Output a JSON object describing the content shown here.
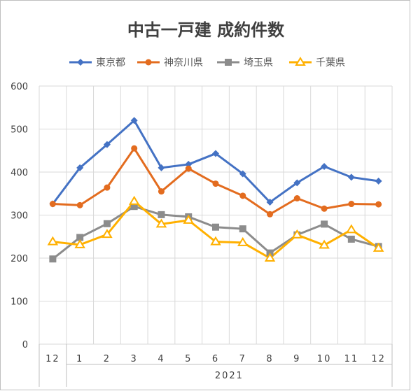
{
  "chart_data": {
    "type": "line",
    "title": "中古一戸建 成約件数",
    "categories": [
      "12",
      "1",
      "2",
      "3",
      "4",
      "5",
      "6",
      "7",
      "8",
      "9",
      "10",
      "11",
      "12"
    ],
    "group_labels": [
      "",
      "2021"
    ],
    "ylim": [
      0,
      600
    ],
    "yticks": [
      "0",
      "100",
      "200",
      "300",
      "400",
      "500",
      "600"
    ],
    "grid": true,
    "legend_position": "top",
    "series": [
      {
        "name": "東京都",
        "color": "#4472C4",
        "marker": "diamond",
        "values": [
          326,
          410,
          464,
          520,
          410,
          418,
          443,
          396,
          330,
          375,
          413,
          388,
          379
        ]
      },
      {
        "name": "神奈川県",
        "color": "#E36C1F",
        "marker": "circle",
        "values": [
          326,
          323,
          364,
          455,
          355,
          408,
          373,
          345,
          302,
          339,
          315,
          326,
          325
        ]
      },
      {
        "name": "埼玉県",
        "color": "#8C8C8C",
        "marker": "square",
        "values": [
          198,
          248,
          280,
          320,
          301,
          296,
          272,
          268,
          212,
          254,
          279,
          244,
          227
        ]
      },
      {
        "name": "千葉県",
        "color": "#FFB000",
        "marker": "triangle",
        "values": [
          238,
          231,
          255,
          332,
          279,
          288,
          238,
          236,
          200,
          254,
          230,
          266,
          223
        ]
      }
    ]
  }
}
